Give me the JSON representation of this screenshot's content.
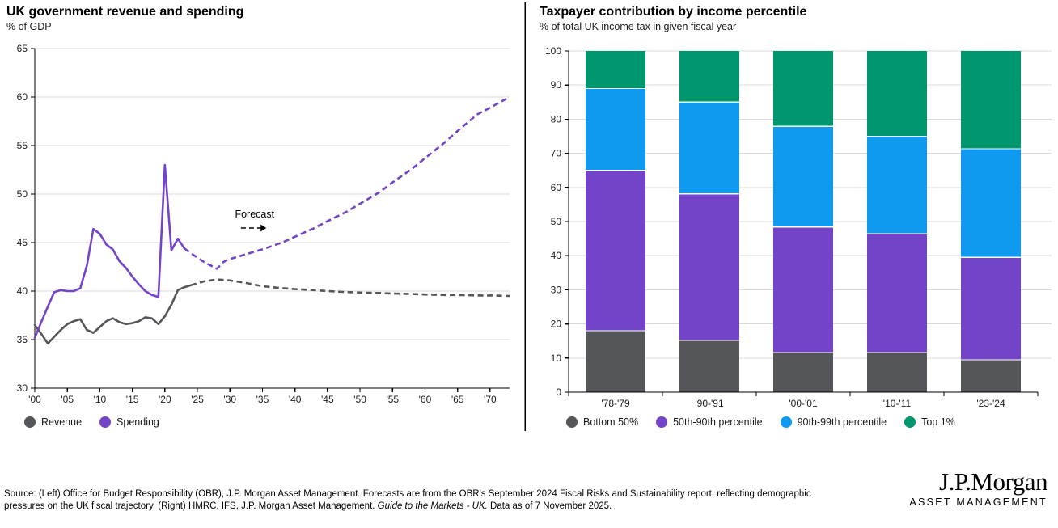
{
  "footer": {
    "source_line1": "Source: (Left) Office for Budget Responsibility (OBR), J.P. Morgan Asset Management. Forecasts are from the OBR's September 2024 Fiscal Risks and Sustainability report, reflecting demographic",
    "source_line2_prefix": "pressures on the UK fiscal trajectory. (Right) HMRC, IFS, J.P. Morgan Asset Management. ",
    "source_line2_italic": "Guide to the Markets - UK.",
    "source_line2_suffix": " Data as of 7 November 2025.",
    "logo_line1": "J.P.Morgan",
    "logo_line2": "ASSET MANAGEMENT"
  },
  "colors": {
    "gray": "#54565a",
    "purple": "#7444c8",
    "blue": "#0f9af0",
    "green": "#00966e",
    "grid": "#d9d9d9",
    "axis": "#000000"
  },
  "chart_data": [
    {
      "type": "line",
      "title": "UK government revenue and spending",
      "subtitle": "% of GDP",
      "ylabel": "% of GDP",
      "ylim": [
        30,
        65
      ],
      "ytick_step": 5,
      "xlim": [
        2000,
        2073
      ],
      "grid": true,
      "legend_position": "bottom",
      "xtick_years": [
        2000,
        2005,
        2010,
        2015,
        2020,
        2025,
        2030,
        2035,
        2040,
        2045,
        2050,
        2055,
        2060,
        2065,
        2070
      ],
      "xtick_labels": [
        "'00",
        "'05",
        "'10",
        "'15",
        "'20",
        "'25",
        "'30",
        "'35",
        "'40",
        "'45",
        "'50",
        "'55",
        "'60",
        "'65",
        "'70"
      ],
      "annotation": {
        "text": "Forecast",
        "year": 2033.8,
        "value": 47.6,
        "arrow": {
          "from_year": 2031.7,
          "to_year": 2035.6,
          "value": 46.5
        }
      },
      "x": [
        2000,
        2001,
        2002,
        2003,
        2004,
        2005,
        2006,
        2007,
        2008,
        2009,
        2010,
        2011,
        2012,
        2013,
        2014,
        2015,
        2016,
        2017,
        2018,
        2019,
        2020,
        2021,
        2022,
        2023,
        2024,
        2026,
        2028,
        2029,
        2030,
        2032,
        2035,
        2038,
        2040,
        2043,
        2045,
        2048,
        2050,
        2053,
        2055,
        2058,
        2060,
        2063,
        2065,
        2068,
        2070,
        2073
      ],
      "series": [
        {
          "name": "Revenue",
          "color": "#54565a",
          "forecast_from": 2024,
          "values": [
            36.5,
            35.6,
            34.6,
            35.3,
            36.0,
            36.6,
            36.9,
            37.1,
            36.0,
            35.7,
            36.3,
            36.9,
            37.2,
            36.8,
            36.6,
            36.7,
            36.9,
            37.3,
            37.2,
            36.6,
            37.4,
            38.6,
            40.1,
            40.4,
            40.6,
            41.0,
            41.2,
            41.15,
            41.1,
            40.9,
            40.5,
            40.3,
            40.2,
            40.1,
            40.0,
            39.9,
            39.85,
            39.8,
            39.75,
            39.7,
            39.65,
            39.6,
            39.6,
            39.55,
            39.55,
            39.5
          ]
        },
        {
          "name": "Spending",
          "color": "#7444c8",
          "forecast_from": 2023,
          "values": [
            35.2,
            36.8,
            38.4,
            39.9,
            40.1,
            40.0,
            40.0,
            40.3,
            42.6,
            46.4,
            45.9,
            44.8,
            44.3,
            43.1,
            42.4,
            41.5,
            40.7,
            40.0,
            39.6,
            39.4,
            53.0,
            44.2,
            45.4,
            44.4,
            43.9,
            43.0,
            42.3,
            43.0,
            43.3,
            43.7,
            44.3,
            45.0,
            45.6,
            46.5,
            47.2,
            48.2,
            49.0,
            50.2,
            51.2,
            52.6,
            53.7,
            55.3,
            56.5,
            58.2,
            58.9,
            60.0
          ]
        }
      ]
    },
    {
      "type": "bar",
      "stacked": true,
      "title": "Taxpayer contribution by income percentile",
      "subtitle": "% of total UK income tax in given fiscal year",
      "ylabel": "% of total UK income tax in given fiscal year",
      "ylim": [
        0,
        100
      ],
      "ytick_step": 10,
      "grid": true,
      "legend_position": "bottom",
      "categories": [
        "'78-'79",
        "'90-'91",
        "'00-'01",
        "'10-'11",
        "'23-'24"
      ],
      "series": [
        {
          "name": "Bottom 50%",
          "color": "#54565a",
          "values": [
            18.0,
            15.2,
            11.6,
            11.6,
            9.5
          ]
        },
        {
          "name": "50th-90th percentile",
          "color": "#7444c8",
          "values": [
            47.0,
            42.9,
            36.8,
            34.8,
            30.0
          ]
        },
        {
          "name": "90th-99th percentile",
          "color": "#0f9af0",
          "values": [
            24.0,
            26.9,
            29.5,
            28.6,
            31.8
          ]
        },
        {
          "name": "Top 1%",
          "color": "#00966e",
          "values": [
            11.0,
            15.0,
            22.1,
            25.0,
            28.7
          ]
        }
      ]
    }
  ]
}
